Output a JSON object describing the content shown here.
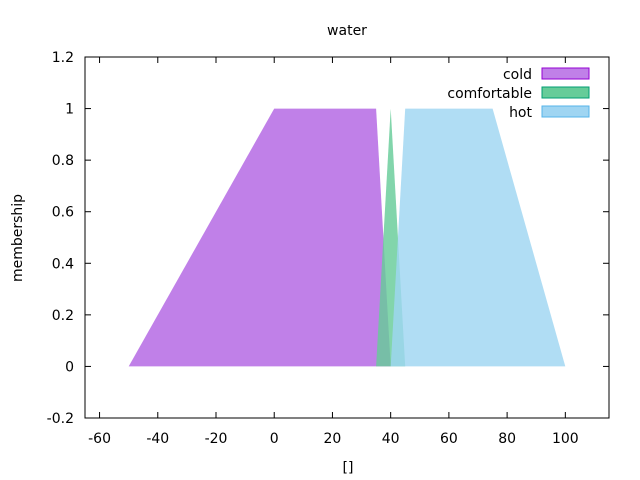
{
  "chart_data": {
    "type": "area",
    "title": "water",
    "xlabel": "[]",
    "ylabel": "membership",
    "xlim": [
      -65,
      115
    ],
    "ylim": [
      -0.2,
      1.2
    ],
    "xticks": [
      -60,
      -40,
      -20,
      0,
      20,
      40,
      60,
      80,
      100
    ],
    "yticks": [
      -0.2,
      0,
      0.2,
      0.4,
      0.6,
      0.8,
      1,
      1.2
    ],
    "xtick_labels": [
      "-60",
      "-40",
      "-20",
      "0",
      "20",
      "40",
      "60",
      "80",
      "100"
    ],
    "ytick_labels": [
      "-0.2",
      "0",
      "0.2",
      "0.4",
      "0.6",
      "0.8",
      "1",
      "1.2"
    ],
    "grid": false,
    "legend_position": "top-right",
    "series": [
      {
        "name": "cold",
        "color": "#c080e8",
        "border": "#9400d3",
        "points": [
          [
            -50,
            0
          ],
          [
            0,
            1
          ],
          [
            35,
            1
          ],
          [
            40,
            0
          ]
        ]
      },
      {
        "name": "comfortable",
        "color": "#66cc99",
        "border": "#009e73",
        "points": [
          [
            35,
            0
          ],
          [
            40,
            1
          ],
          [
            45,
            0
          ]
        ]
      },
      {
        "name": "hot",
        "color": "#9fd5f2",
        "border": "#56b4e9",
        "points": [
          [
            40,
            0
          ],
          [
            45,
            1
          ],
          [
            75,
            1
          ],
          [
            100,
            0
          ]
        ]
      }
    ]
  }
}
